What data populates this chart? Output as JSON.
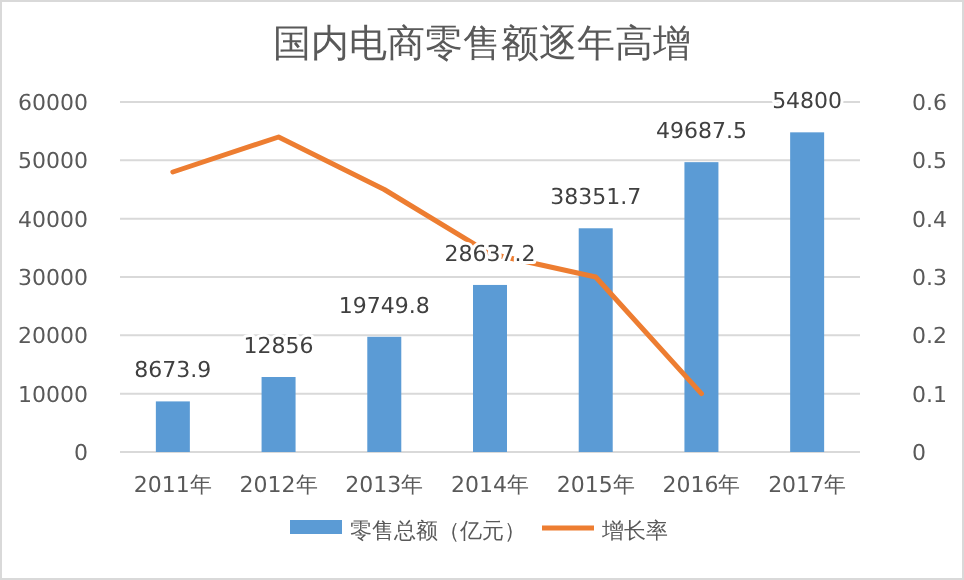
{
  "chart_data": {
    "type": "bar",
    "title": "国内电商零售额逐年高增",
    "categories": [
      "2011年",
      "2012年",
      "2013年",
      "2014年",
      "2015年",
      "2016年",
      "2017年"
    ],
    "series": [
      {
        "name": "零售总额（亿元）",
        "color": "#5b9bd5",
        "values": [
          8673.9,
          12856,
          19749.8,
          28637.2,
          38351.7,
          49687.5,
          54800
        ],
        "value_labels": [
          "8673.9",
          "12856",
          "19749.8",
          "28637.2",
          "38351.7",
          "49687.5",
          "54800"
        ]
      },
      {
        "name": "增长率",
        "type": "line",
        "axis": "y2",
        "color": "#ed7d31",
        "values": [
          0.48,
          0.54,
          0.45,
          0.34,
          0.3,
          0.1,
          null
        ]
      }
    ],
    "ylim": [
      0,
      60000
    ],
    "yticks": [
      0,
      10000,
      20000,
      30000,
      40000,
      50000,
      60000
    ],
    "y2lim": [
      0,
      0.6
    ],
    "y2ticks": [
      0,
      0.1,
      0.2,
      0.3,
      0.4,
      0.5,
      0.6
    ],
    "grid": "y",
    "legend": "bottom",
    "marker": "none",
    "line_style": "solid"
  }
}
